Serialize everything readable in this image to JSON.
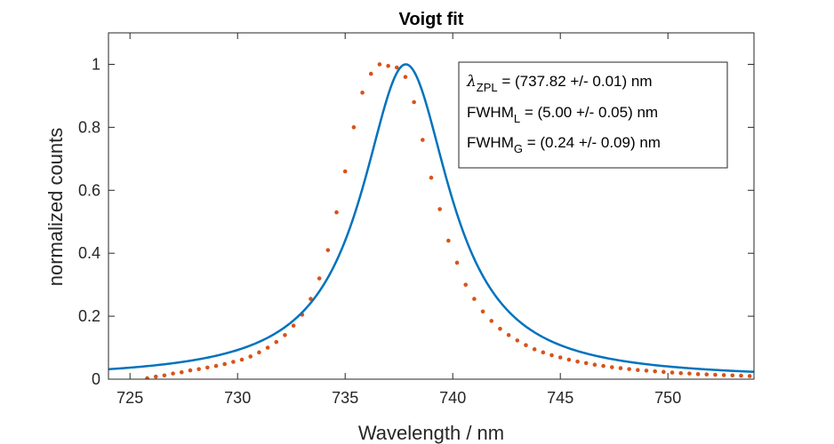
{
  "chart_data": {
    "type": "scatter",
    "title": "Voigt fit",
    "xlabel": "Wavelength / nm",
    "ylabel": "normalized counts",
    "xlim": [
      724,
      754
    ],
    "ylim": [
      0,
      1.1
    ],
    "x_ticks": [
      725,
      730,
      735,
      740,
      745,
      750
    ],
    "y_ticks": [
      0,
      0.2,
      0.4,
      0.6,
      0.8,
      1
    ],
    "x_tick_labels": [
      "725",
      "730",
      "735",
      "740",
      "745",
      "750"
    ],
    "y_tick_labels": [
      "0",
      "0.2",
      "0.4",
      "0.6",
      "0.8",
      "1"
    ],
    "grid": false,
    "series": [
      {
        "type": "scatter",
        "color": "#D95319",
        "x": [
          725.8,
          726.2,
          726.6,
          727.0,
          727.4,
          727.8,
          728.2,
          728.6,
          729.0,
          729.4,
          729.8,
          730.2,
          730.6,
          731.0,
          731.4,
          731.8,
          732.2,
          732.6,
          733.0,
          733.4,
          733.8,
          734.2,
          734.6,
          735.0,
          735.4,
          735.8,
          736.2,
          736.6,
          737.0,
          737.4,
          737.8,
          738.2,
          738.6,
          739.0,
          739.4,
          739.8,
          740.2,
          740.6,
          741.0,
          741.4,
          741.8,
          742.2,
          742.6,
          743.0,
          743.4,
          743.8,
          744.2,
          744.6,
          745.0,
          745.4,
          745.8,
          746.2,
          746.6,
          747.0,
          747.4,
          747.8,
          748.2,
          748.6,
          749.0,
          749.4,
          749.8,
          750.2,
          750.6,
          751.0,
          751.4,
          751.8,
          752.2,
          752.6,
          753.0,
          753.4,
          753.8
        ],
        "y": [
          0.003,
          0.008,
          0.012,
          0.018,
          0.022,
          0.028,
          0.032,
          0.037,
          0.042,
          0.048,
          0.055,
          0.062,
          0.072,
          0.085,
          0.1,
          0.118,
          0.14,
          0.17,
          0.205,
          0.255,
          0.32,
          0.41,
          0.53,
          0.66,
          0.8,
          0.91,
          0.97,
          1.0,
          0.995,
          0.99,
          0.96,
          0.88,
          0.76,
          0.64,
          0.54,
          0.44,
          0.37,
          0.3,
          0.255,
          0.215,
          0.185,
          0.16,
          0.14,
          0.123,
          0.108,
          0.095,
          0.085,
          0.076,
          0.069,
          0.062,
          0.056,
          0.051,
          0.046,
          0.042,
          0.038,
          0.035,
          0.032,
          0.029,
          0.027,
          0.025,
          0.023,
          0.021,
          0.019,
          0.018,
          0.016,
          0.015,
          0.014,
          0.013,
          0.012,
          0.011,
          0.01
        ]
      },
      {
        "type": "line",
        "color": "#0072BD",
        "x0": 737.82,
        "fwhm_l": 5.0,
        "x": [
          724,
          726,
          728,
          730,
          731,
          732,
          733,
          734,
          735,
          735.5,
          736,
          736.5,
          737,
          737.5,
          737.82,
          738.2,
          738.6,
          739,
          739.5,
          740,
          740.5,
          741,
          742,
          743,
          744,
          745,
          746,
          748,
          750,
          752,
          754
        ],
        "y": [
          0.012,
          0.021,
          0.032,
          0.056,
          0.073,
          0.1,
          0.142,
          0.214,
          0.347,
          0.441,
          0.571,
          0.733,
          0.903,
          0.985,
          1.0,
          0.977,
          0.911,
          0.817,
          0.689,
          0.56,
          0.455,
          0.372,
          0.261,
          0.19,
          0.144,
          0.112,
          0.09,
          0.061,
          0.043,
          0.032,
          0.025
        ]
      }
    ],
    "annotation": {
      "line1": {
        "symbol": "λ",
        "sub": "ZPL",
        "rest": " = (737.82 +/- 0.01) nm"
      },
      "line2": {
        "main": "FWHM",
        "sub": "L",
        "rest": " = (5.00 +/- 0.05) nm"
      },
      "line3": {
        "main": "FWHM",
        "sub": "G",
        "rest": " = (0.24 +/- 0.09) nm"
      }
    }
  }
}
